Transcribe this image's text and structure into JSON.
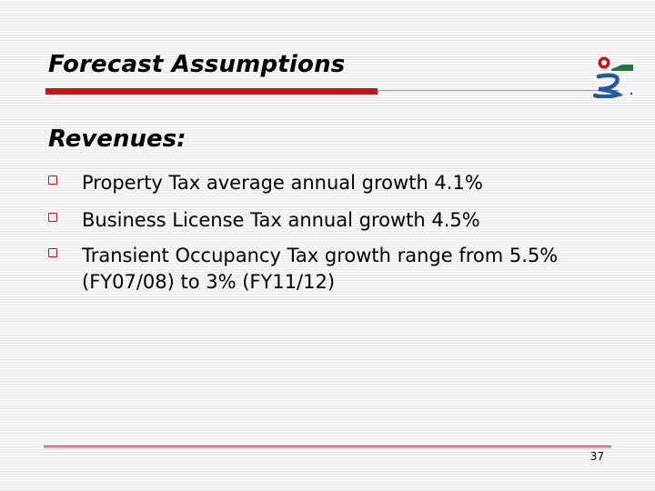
{
  "slide": {
    "title": "Forecast Assumptions",
    "section_heading": "Revenues:",
    "bullets": [
      {
        "text": "Property Tax average annual growth 4.1%"
      },
      {
        "text": "Business License Tax annual growth 4.5%"
      },
      {
        "text": "Transient Occupancy Tax growth range from 5.5% (FY07/08) to 3% (FY11/12)"
      }
    ],
    "page_number": "37"
  },
  "colors": {
    "accent_red": "#cc1111",
    "logo_blue": "#1e5aa8",
    "logo_green": "#1e7a3c",
    "background": "#f4f4f4"
  },
  "icons": {
    "logo": "city-logo-icon",
    "bullet": "hollow-square-bullet-icon"
  }
}
